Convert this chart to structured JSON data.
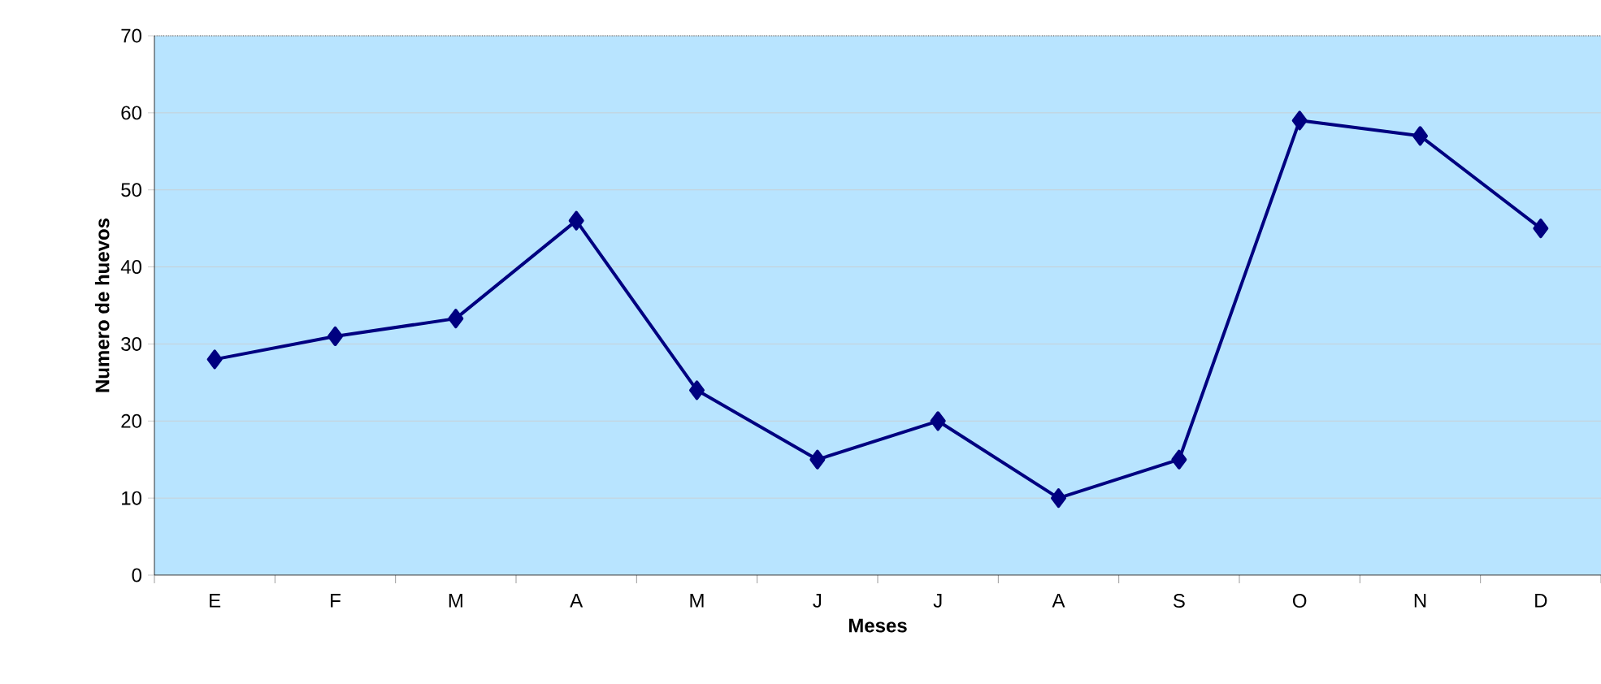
{
  "chart_data": {
    "type": "line",
    "xlabel": "Meses",
    "ylabel": "Numero de huevos",
    "categories": [
      "E",
      "F",
      "M",
      "A",
      "M",
      "J",
      "J",
      "A",
      "S",
      "O",
      "N",
      "D"
    ],
    "series": [
      {
        "color": "#000080",
        "values": [
          28,
          31,
          33.3,
          46,
          24,
          15,
          20,
          10,
          15,
          59,
          57,
          45
        ]
      }
    ],
    "ylim": [
      0,
      70
    ],
    "yticks": [
      0,
      10,
      20,
      30,
      40,
      50,
      60,
      70
    ],
    "grid": "y",
    "marker": "diamond",
    "line_style": "solid"
  }
}
